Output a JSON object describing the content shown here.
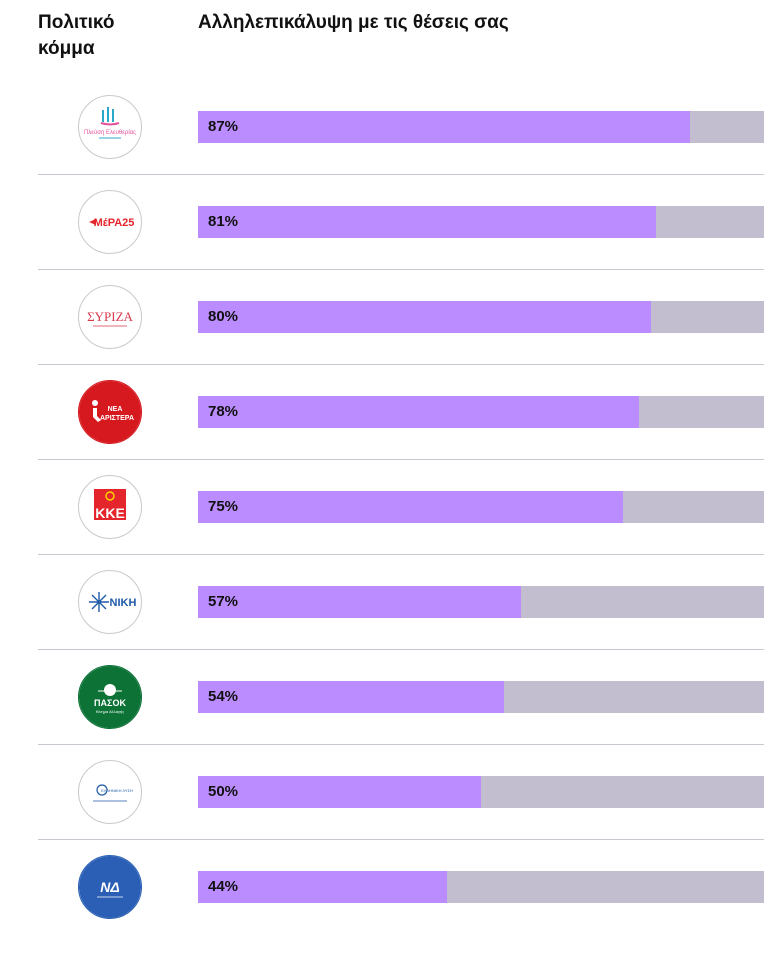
{
  "header": {
    "party_column": "Πολιτικό κόμμα",
    "overlap_column": "Αλληλεπικάλυψη με τις θέσεις σας"
  },
  "colors": {
    "bar_fill": "#bb8cff",
    "bar_track": "#c3bdd0",
    "separator": "#c8c8d0"
  },
  "logo_marks": {
    "plefsi": "Πλεύση Ελευθερίας",
    "mera25": "ΜέΡΑ25",
    "syriza": "ΣΥΡΙΖΑ",
    "nea_aristera_1": "ΝΕΑ",
    "nea_aristera_2": "ΑΡΙΣΤΕΡΑ",
    "kke": "ΚΚΕ",
    "niki": "ΝΙΚΗ",
    "pasok": "ΠΑΣΟΚ",
    "pasok_sub": "Κίνημα Αλλαγής",
    "elliniki_lysi": "ΕΛΛΗΝΙΚΗ ΛΥΣΗ",
    "nd": "ΝΔ"
  },
  "chart_data": {
    "type": "bar",
    "orientation": "horizontal",
    "title": "Αλληλεπικάλυψη με τις θέσεις σας",
    "xlabel": "",
    "ylabel": "Πολιτικό κόμμα",
    "xlim": [
      0,
      100
    ],
    "unit": "%",
    "categories": [
      "Πλεύση Ελευθερίας",
      "ΜέΡΑ25",
      "ΣΥΡΙΖΑ",
      "Νέα Αριστερά",
      "ΚΚΕ",
      "ΝΙΚΗ",
      "ΠΑΣΟΚ",
      "Ελληνική Λύση",
      "Νέα Δημοκρατία"
    ],
    "values": [
      87,
      81,
      80,
      78,
      75,
      57,
      54,
      50,
      44
    ],
    "labels": [
      "87%",
      "81%",
      "80%",
      "78%",
      "75%",
      "57%",
      "54%",
      "50%",
      "44%"
    ],
    "logos": [
      "plefsi-logo",
      "mera25-logo",
      "syriza-logo",
      "nea-aristera-logo",
      "kke-logo",
      "niki-logo",
      "pasok-logo",
      "elliniki-lysi-logo",
      "nd-logo"
    ]
  }
}
